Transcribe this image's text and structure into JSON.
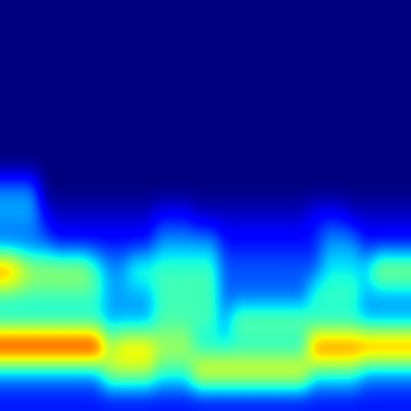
{
  "chart_data": {
    "type": "heatmap",
    "tick_labels": false,
    "cells": [
      [
        1,
        1,
        1,
        1,
        1,
        1,
        1,
        1,
        1,
        1,
        1,
        1,
        1,
        1,
        1,
        1,
        1,
        1,
        1,
        1,
        1,
        1,
        1,
        1,
        1,
        1,
        1,
        1,
        1,
        1,
        1,
        1
      ],
      [
        1,
        1,
        1,
        1,
        1,
        1,
        1,
        1,
        1,
        1,
        1,
        1,
        1,
        1,
        1,
        1,
        1,
        1,
        1,
        1,
        1,
        1,
        1,
        1,
        1,
        1,
        1,
        1,
        1,
        1,
        1,
        1
      ],
      [
        1,
        1,
        1,
        1,
        1,
        1,
        1,
        1,
        1,
        1,
        1,
        1,
        1,
        1,
        1,
        1,
        1,
        1,
        1,
        1,
        1,
        1,
        1,
        1,
        1,
        1,
        1,
        1,
        1,
        1,
        1,
        1
      ],
      [
        1,
        1,
        1,
        1,
        1,
        1,
        1,
        1,
        1,
        1,
        1,
        1,
        1,
        1,
        1,
        1,
        1,
        1,
        1,
        1,
        1,
        1,
        1,
        1,
        1,
        1,
        1,
        1,
        1,
        1,
        1,
        1
      ],
      [
        1,
        1,
        1,
        1,
        1,
        1,
        1,
        1,
        1,
        1,
        1,
        1,
        1,
        1,
        1,
        1,
        1,
        1,
        1,
        1,
        1,
        1,
        1,
        1,
        1,
        1,
        1,
        1,
        1,
        1,
        1,
        1
      ],
      [
        1,
        1,
        1,
        1,
        1,
        1,
        1,
        1,
        1,
        1,
        1,
        1,
        1,
        1,
        1,
        1,
        1,
        1,
        1,
        1,
        1,
        1,
        1,
        1,
        1,
        1,
        1,
        1,
        1,
        1,
        1,
        1
      ],
      [
        1,
        1,
        1,
        1,
        1,
        1,
        1,
        1,
        1,
        1,
        1,
        1,
        1,
        1,
        1,
        1,
        1,
        1,
        1,
        1,
        1,
        1,
        1,
        1,
        1,
        1,
        1,
        1,
        1,
        1,
        1,
        1
      ],
      [
        3,
        3,
        3,
        1,
        1,
        1,
        1,
        1,
        1,
        1,
        1,
        1,
        1,
        1,
        1,
        1,
        1,
        1,
        1,
        1,
        1,
        1,
        1,
        1,
        1,
        1,
        1,
        1,
        1,
        1,
        1,
        1
      ],
      [
        3,
        3,
        3,
        2,
        1.5,
        1.5,
        1.5,
        1.5,
        1.5,
        1.5,
        1.5,
        1.5,
        2,
        2,
        2,
        1.5,
        1.5,
        1.5,
        1.5,
        1.5,
        1.5,
        1.5,
        1.5,
        1.5,
        2,
        2,
        2,
        1.5,
        1.5,
        1.5,
        1.5,
        1.5
      ],
      [
        2.5,
        2.5,
        2.5,
        2.5,
        2,
        2,
        2,
        2,
        2,
        2,
        2,
        2,
        3,
        3,
        3,
        3,
        3,
        2,
        2,
        2,
        2,
        2,
        2,
        2,
        2,
        3,
        3,
        3,
        2,
        2,
        2,
        2
      ],
      [
        7,
        6,
        5,
        5,
        5,
        5,
        5,
        4,
        3,
        3,
        4,
        4,
        4,
        4,
        4,
        4,
        4,
        2.5,
        2.5,
        2.5,
        2.5,
        2.5,
        2.5,
        2.5,
        2.5,
        3.5,
        3.5,
        3.5,
        3.5,
        5,
        5,
        5
      ],
      [
        4,
        4,
        4,
        4,
        4,
        4,
        4,
        4,
        3,
        3,
        3,
        3,
        4,
        4,
        4,
        4,
        4,
        2.5,
        2.5,
        2.5,
        2.5,
        2.5,
        2.5,
        2.5,
        4,
        4,
        4,
        4,
        3,
        3,
        3,
        3
      ],
      [
        3.5,
        3.5,
        3.5,
        3.5,
        3.5,
        3.5,
        3.5,
        3.5,
        3,
        3,
        3,
        3,
        4,
        4,
        4,
        4,
        4,
        3,
        4.5,
        4.5,
        4.5,
        4.5,
        4.5,
        4.5,
        3.5,
        3.5,
        3.5,
        3.5,
        3,
        3,
        3,
        3
      ],
      [
        8,
        8,
        8,
        8,
        8,
        8,
        8,
        8,
        5,
        6,
        6,
        6,
        5,
        5,
        5,
        3.5,
        3.5,
        3.5,
        3.5,
        3.5,
        3.5,
        3.5,
        3.5,
        3.5,
        7,
        7,
        7,
        7,
        7,
        7,
        7,
        7
      ],
      [
        3,
        3,
        3,
        3,
        3,
        3,
        3,
        3,
        5,
        5,
        5,
        5,
        4,
        4,
        4,
        6,
        6,
        6,
        6,
        6,
        6,
        6,
        6,
        6,
        4,
        4,
        4,
        4,
        3,
        3,
        3,
        3
      ],
      [
        2,
        2,
        2,
        2,
        2,
        2,
        2,
        2,
        2,
        2,
        2,
        2,
        2,
        2,
        2,
        2,
        2,
        2,
        2,
        2,
        2,
        2,
        2,
        2,
        2,
        2,
        2,
        2,
        2,
        2,
        2,
        2
      ]
    ]
  }
}
